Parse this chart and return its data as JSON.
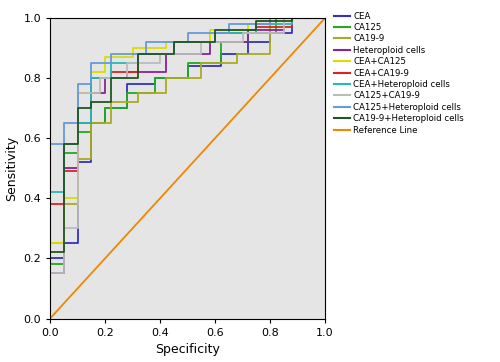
{
  "title": "",
  "xlabel": "Specificity",
  "ylabel": "Sensitivity",
  "xlim": [
    0.0,
    1.0
  ],
  "ylim": [
    0.0,
    1.0
  ],
  "bg_color": "#e5e5e5",
  "fig_bg": "#ffffff",
  "curves": [
    {
      "name": "CEA",
      "color": "#3333bb",
      "fpr": [
        0.0,
        0.0,
        0.05,
        0.05,
        0.1,
        0.1,
        0.15,
        0.15,
        0.2,
        0.2,
        0.28,
        0.28,
        0.38,
        0.38,
        0.5,
        0.5,
        0.62,
        0.62,
        0.72,
        0.72,
        0.8,
        0.8,
        0.88,
        0.88,
        1.0
      ],
      "tpr": [
        0.0,
        0.2,
        0.2,
        0.25,
        0.25,
        0.52,
        0.52,
        0.65,
        0.65,
        0.7,
        0.7,
        0.78,
        0.78,
        0.8,
        0.8,
        0.84,
        0.84,
        0.88,
        0.88,
        0.92,
        0.92,
        0.95,
        0.95,
        1.0,
        1.0
      ]
    },
    {
      "name": "CA125",
      "color": "#22aa22",
      "fpr": [
        0.0,
        0.0,
        0.05,
        0.05,
        0.1,
        0.1,
        0.15,
        0.15,
        0.2,
        0.2,
        0.28,
        0.28,
        0.38,
        0.38,
        0.5,
        0.5,
        0.62,
        0.62,
        0.72,
        0.72,
        0.82,
        0.82,
        1.0
      ],
      "tpr": [
        0.0,
        0.18,
        0.18,
        0.55,
        0.55,
        0.62,
        0.62,
        0.65,
        0.65,
        0.7,
        0.7,
        0.75,
        0.75,
        0.8,
        0.8,
        0.85,
        0.85,
        0.92,
        0.92,
        0.95,
        0.95,
        1.0,
        1.0
      ]
    },
    {
      "name": "CA19-9",
      "color": "#aaaa22",
      "fpr": [
        0.0,
        0.0,
        0.05,
        0.05,
        0.1,
        0.1,
        0.15,
        0.15,
        0.22,
        0.22,
        0.32,
        0.32,
        0.42,
        0.42,
        0.55,
        0.55,
        0.68,
        0.68,
        0.8,
        0.8,
        1.0
      ],
      "tpr": [
        0.0,
        0.25,
        0.25,
        0.38,
        0.38,
        0.53,
        0.53,
        0.65,
        0.65,
        0.72,
        0.72,
        0.75,
        0.75,
        0.8,
        0.8,
        0.85,
        0.85,
        0.88,
        0.88,
        1.0,
        1.0
      ]
    },
    {
      "name": "Heteroploid cells",
      "color": "#882299",
      "fpr": [
        0.0,
        0.0,
        0.05,
        0.05,
        0.1,
        0.1,
        0.15,
        0.15,
        0.2,
        0.2,
        0.28,
        0.28,
        0.42,
        0.42,
        0.58,
        0.58,
        0.72,
        0.72,
        0.85,
        0.85,
        1.0
      ],
      "tpr": [
        0.0,
        0.15,
        0.15,
        0.5,
        0.5,
        0.65,
        0.65,
        0.75,
        0.75,
        0.8,
        0.8,
        0.82,
        0.82,
        0.88,
        0.88,
        0.92,
        0.92,
        0.96,
        0.96,
        1.0,
        1.0
      ]
    },
    {
      "name": "CEA+CA125",
      "color": "#dddd00",
      "fpr": [
        0.0,
        0.0,
        0.05,
        0.05,
        0.1,
        0.1,
        0.15,
        0.15,
        0.2,
        0.2,
        0.3,
        0.3,
        0.42,
        0.42,
        0.58,
        0.58,
        0.72,
        0.72,
        0.85,
        0.85,
        1.0
      ],
      "tpr": [
        0.0,
        0.25,
        0.25,
        0.4,
        0.4,
        0.75,
        0.75,
        0.82,
        0.82,
        0.87,
        0.87,
        0.9,
        0.9,
        0.92,
        0.92,
        0.96,
        0.96,
        0.98,
        0.98,
        1.0,
        1.0
      ]
    },
    {
      "name": "CEA+CA19-9",
      "color": "#dd2222",
      "fpr": [
        0.0,
        0.0,
        0.05,
        0.05,
        0.1,
        0.1,
        0.15,
        0.15,
        0.22,
        0.22,
        0.32,
        0.32,
        0.45,
        0.45,
        0.6,
        0.6,
        0.75,
        0.75,
        0.88,
        0.88,
        1.0
      ],
      "tpr": [
        0.0,
        0.38,
        0.38,
        0.49,
        0.49,
        0.65,
        0.65,
        0.8,
        0.8,
        0.82,
        0.82,
        0.88,
        0.88,
        0.92,
        0.92,
        0.95,
        0.95,
        0.97,
        0.97,
        1.0,
        1.0
      ]
    },
    {
      "name": "CEA+Heteroploid cells",
      "color": "#22bbbb",
      "fpr": [
        0.0,
        0.0,
        0.05,
        0.05,
        0.1,
        0.1,
        0.15,
        0.15,
        0.22,
        0.22,
        0.32,
        0.32,
        0.45,
        0.45,
        0.6,
        0.6,
        0.75,
        0.75,
        0.88,
        0.88,
        1.0
      ],
      "tpr": [
        0.0,
        0.42,
        0.42,
        0.58,
        0.58,
        0.65,
        0.65,
        0.8,
        0.8,
        0.85,
        0.85,
        0.88,
        0.88,
        0.92,
        0.92,
        0.95,
        0.95,
        0.98,
        0.98,
        1.0,
        1.0
      ]
    },
    {
      "name": "CA125+CA19-9",
      "color": "#bbbbbb",
      "fpr": [
        0.0,
        0.0,
        0.05,
        0.05,
        0.1,
        0.1,
        0.18,
        0.18,
        0.28,
        0.28,
        0.4,
        0.4,
        0.55,
        0.55,
        0.7,
        0.7,
        0.85,
        0.85,
        1.0
      ],
      "tpr": [
        0.0,
        0.15,
        0.15,
        0.3,
        0.3,
        0.75,
        0.75,
        0.8,
        0.8,
        0.85,
        0.85,
        0.88,
        0.88,
        0.92,
        0.92,
        0.95,
        0.95,
        1.0,
        1.0
      ]
    },
    {
      "name": "CA125+Heteroploid cells",
      "color": "#6699dd",
      "fpr": [
        0.0,
        0.0,
        0.05,
        0.05,
        0.1,
        0.1,
        0.15,
        0.15,
        0.22,
        0.22,
        0.35,
        0.35,
        0.5,
        0.5,
        0.65,
        0.65,
        0.8,
        0.8,
        1.0
      ],
      "tpr": [
        0.0,
        0.58,
        0.58,
        0.65,
        0.65,
        0.78,
        0.78,
        0.85,
        0.85,
        0.88,
        0.88,
        0.92,
        0.92,
        0.95,
        0.95,
        0.98,
        0.98,
        1.0,
        1.0
      ]
    },
    {
      "name": "CA19-9+Heteroploid cells",
      "color": "#225522",
      "fpr": [
        0.0,
        0.0,
        0.05,
        0.05,
        0.1,
        0.1,
        0.15,
        0.15,
        0.22,
        0.22,
        0.32,
        0.32,
        0.45,
        0.45,
        0.6,
        0.6,
        0.75,
        0.75,
        0.88,
        0.88,
        1.0
      ],
      "tpr": [
        0.0,
        0.22,
        0.22,
        0.58,
        0.58,
        0.7,
        0.7,
        0.72,
        0.72,
        0.8,
        0.8,
        0.88,
        0.88,
        0.92,
        0.92,
        0.96,
        0.96,
        0.99,
        0.99,
        1.0,
        1.0
      ]
    },
    {
      "name": "Reference Line",
      "color": "#ee8800",
      "fpr": [
        0.0,
        1.0
      ],
      "tpr": [
        0.0,
        1.0
      ]
    }
  ],
  "xticks": [
    0.0,
    0.2,
    0.4,
    0.6,
    0.8,
    1.0
  ],
  "yticks": [
    0.0,
    0.2,
    0.4,
    0.6,
    0.8,
    1.0
  ]
}
